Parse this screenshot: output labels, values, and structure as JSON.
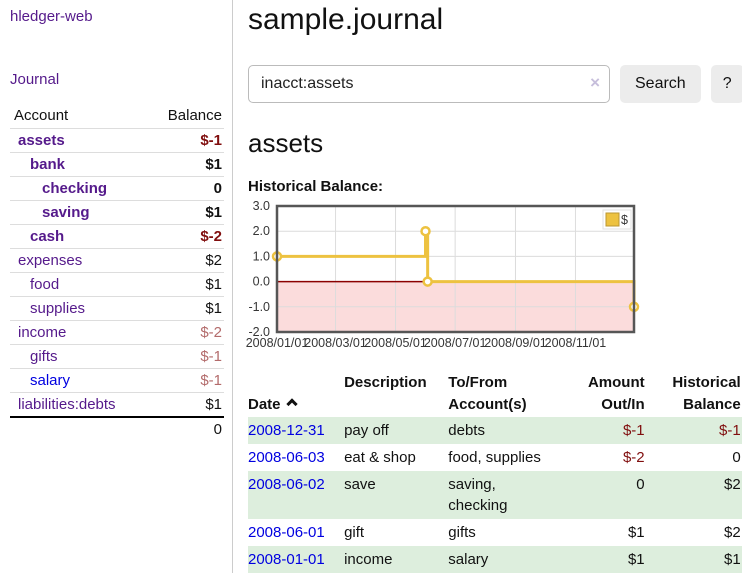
{
  "app": {
    "title": "hledger-web",
    "nav_journal": "Journal"
  },
  "colors": {
    "purple_link": "#551a8b",
    "blue_link": "#0000e0",
    "negative_strong": "#800e0e",
    "negative_muted": "#b36b6b",
    "row_stripe_green": "#ddeedd"
  },
  "sidebar": {
    "header": {
      "account": "Account",
      "balance": "Balance"
    },
    "accounts": [
      {
        "name": "assets",
        "balance": "$-1"
      },
      {
        "name": "bank",
        "balance": "$1"
      },
      {
        "name": "checking",
        "balance": "0"
      },
      {
        "name": "saving",
        "balance": "$1"
      },
      {
        "name": "cash",
        "balance": "$-2"
      },
      {
        "name": "expenses",
        "balance": "$2"
      },
      {
        "name": "food",
        "balance": "$1"
      },
      {
        "name": "supplies",
        "balance": "$1"
      },
      {
        "name": "income",
        "balance": "$-2"
      },
      {
        "name": "gifts",
        "balance": "$-1"
      },
      {
        "name": "salary",
        "balance": "$-1"
      },
      {
        "name": "liabilities:debts",
        "balance": "$1"
      }
    ],
    "total": "0"
  },
  "main": {
    "title": "sample.journal",
    "search": {
      "value": "inacct:assets",
      "clear_icon": "×",
      "button": "Search",
      "help_button": "?"
    },
    "account_heading": "assets",
    "chart_label": "Historical Balance:"
  },
  "chart_data": {
    "type": "line",
    "title": "Historical Balance of assets",
    "step": true,
    "ylim": [
      -2,
      3
    ],
    "yticks": [
      "3.0",
      "2.0",
      "1.0",
      "0.0",
      "-1.0",
      "-2.0"
    ],
    "xticks": [
      {
        "label": "2008/01/01",
        "x": 0.0
      },
      {
        "label": "2008/03/01",
        "x": 0.164
      },
      {
        "label": "2008/05/01",
        "x": 0.332
      },
      {
        "label": "2008/07/01",
        "x": 0.499
      },
      {
        "label": "2008/09/01",
        "x": 0.668
      },
      {
        "label": "2008/11/01",
        "x": 0.836
      }
    ],
    "series": [
      {
        "name": "$",
        "points": [
          {
            "date": "2008-01-01",
            "x": 0.0,
            "y": 1
          },
          {
            "date": "2008-06-01",
            "x": 0.416,
            "y": 2
          },
          {
            "date": "2008-06-03",
            "x": 0.422,
            "y": 0
          },
          {
            "date": "2008-12-31",
            "x": 1.0,
            "y": -1
          }
        ]
      }
    ],
    "legend": {
      "position": "top-right",
      "label": "$"
    },
    "colors": {
      "line": "#edc240",
      "negative_region": "#fbdcdc",
      "zero_line": "#8b0000",
      "grid": "#dcdcdc",
      "border": "#565656"
    }
  },
  "register": {
    "columns": [
      "Date",
      "Description",
      "To/From\nAccount(s)",
      "Amount\nOut/In",
      "Historical\nBalance"
    ],
    "sort_icon": "caret-up",
    "rows": [
      {
        "date": "2008-12-31",
        "description": "pay off",
        "accounts": "debts",
        "amount": "$-1",
        "balance": "$-1"
      },
      {
        "date": "2008-06-03",
        "description": "eat & shop",
        "accounts": "food, supplies",
        "amount": "$-2",
        "balance": "0"
      },
      {
        "date": "2008-06-02",
        "description": "save",
        "accounts": "saving,\nchecking",
        "amount": "0",
        "balance": "$2"
      },
      {
        "date": "2008-06-01",
        "description": "gift",
        "accounts": "gifts",
        "amount": "$1",
        "balance": "$2"
      },
      {
        "date": "2008-01-01",
        "description": "income",
        "accounts": "salary",
        "amount": "$1",
        "balance": "$1"
      }
    ]
  }
}
